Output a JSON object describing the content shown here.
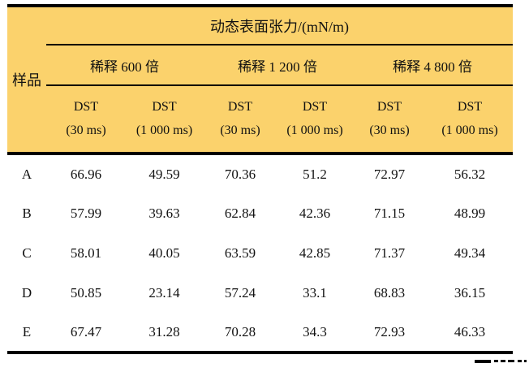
{
  "table": {
    "title_header": "动态表面张力/(mN/m)",
    "corner_header": "样品",
    "group_headers": [
      "稀释 600 倍",
      "稀释 1 200 倍",
      "稀释 4 800 倍"
    ],
    "sub_headers": [
      {
        "line1": "DST",
        "line2": "(30 ms)"
      },
      {
        "line1": "DST",
        "line2": "(1 000 ms)"
      },
      {
        "line1": "DST",
        "line2": "(30 ms)"
      },
      {
        "line1": "DST",
        "line2": "(1 000 ms)"
      },
      {
        "line1": "DST",
        "line2": "(30 ms)"
      },
      {
        "line1": "DST",
        "line2": "(1 000 ms)"
      }
    ],
    "rows": [
      {
        "sample": "A",
        "values": [
          "66.96",
          "49.59",
          "70.36",
          "51.2",
          "72.97",
          "56.32"
        ]
      },
      {
        "sample": "B",
        "values": [
          "57.99",
          "39.63",
          "62.84",
          "42.36",
          "71.15",
          "48.99"
        ]
      },
      {
        "sample": "C",
        "values": [
          "58.01",
          "40.05",
          "63.59",
          "42.85",
          "71.37",
          "49.34"
        ]
      },
      {
        "sample": "D",
        "values": [
          "50.85",
          "23.14",
          "57.24",
          "33.1",
          "68.83",
          "36.15"
        ]
      },
      {
        "sample": "E",
        "values": [
          "67.47",
          "31.28",
          "70.28",
          "34.3",
          "72.93",
          "46.33"
        ]
      }
    ],
    "colors": {
      "header_bg": "#FBD26C",
      "rule": "#000000",
      "text": "#111111"
    }
  },
  "chart_data": {
    "type": "table",
    "title": "动态表面张力/(mN/m)",
    "row_label": "样品",
    "column_groups": [
      "稀释 600 倍",
      "稀释 1 200 倍",
      "稀释 4 800 倍"
    ],
    "columns": [
      "DST (30 ms)",
      "DST (1 000 ms)",
      "DST (30 ms)",
      "DST (1 000 ms)",
      "DST (30 ms)",
      "DST (1 000 ms)"
    ],
    "categories": [
      "A",
      "B",
      "C",
      "D",
      "E"
    ],
    "series": [
      {
        "name": "A",
        "values": [
          66.96,
          49.59,
          70.36,
          51.2,
          72.97,
          56.32
        ]
      },
      {
        "name": "B",
        "values": [
          57.99,
          39.63,
          62.84,
          42.36,
          71.15,
          48.99
        ]
      },
      {
        "name": "C",
        "values": [
          58.01,
          40.05,
          63.59,
          42.85,
          71.37,
          49.34
        ]
      },
      {
        "name": "D",
        "values": [
          50.85,
          23.14,
          57.24,
          33.1,
          68.83,
          36.15
        ]
      },
      {
        "name": "E",
        "values": [
          67.47,
          31.28,
          70.28,
          34.3,
          72.93,
          46.33
        ]
      }
    ]
  }
}
